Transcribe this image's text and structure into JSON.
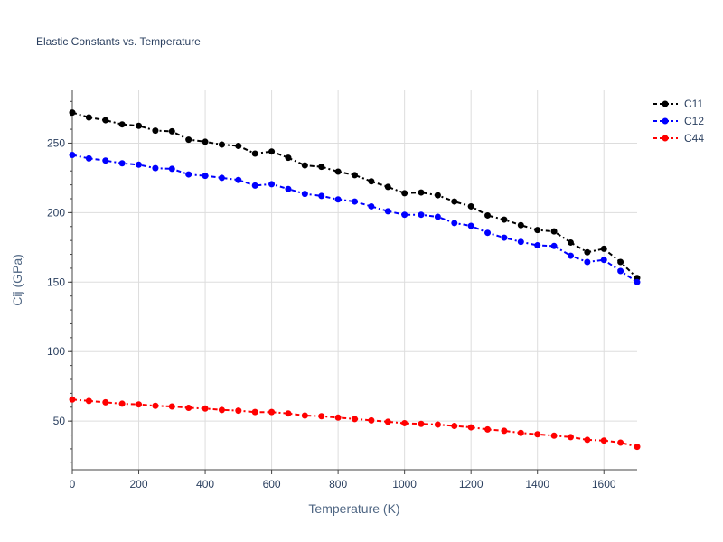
{
  "chart_data": {
    "type": "line",
    "title": "Elastic Constants vs. Temperature",
    "xlabel": "Temperature (K)",
    "ylabel": "Cij (GPa)",
    "xlim": [
      0,
      1700
    ],
    "ylim": [
      15,
      288
    ],
    "xticks": [
      0,
      200,
      400,
      600,
      800,
      1000,
      1200,
      1400,
      1600
    ],
    "yticks": [
      50,
      100,
      150,
      200,
      250
    ],
    "grid": true,
    "legend_position": "top-right",
    "x": [
      0,
      50,
      100,
      150,
      200,
      250,
      300,
      350,
      400,
      450,
      500,
      550,
      600,
      650,
      700,
      750,
      800,
      850,
      900,
      950,
      1000,
      1050,
      1100,
      1150,
      1200,
      1250,
      1300,
      1350,
      1400,
      1450,
      1500,
      1550,
      1600,
      1650,
      1700
    ],
    "series": [
      {
        "name": "C11",
        "color": "#000000",
        "values": [
          272,
          268.5,
          266.5,
          263.5,
          262.5,
          259,
          258.5,
          252.5,
          251,
          249,
          248,
          242.5,
          244,
          239.5,
          234,
          233,
          229.5,
          227,
          222.5,
          218.5,
          214,
          214.5,
          212.5,
          208,
          204.5,
          198,
          195,
          191,
          187.5,
          186.5,
          178.5,
          171.5,
          174,
          164.5,
          153
        ]
      },
      {
        "name": "C12",
        "color": "#0000ff",
        "values": [
          241.5,
          239,
          237.5,
          235.5,
          234.5,
          232,
          231.5,
          227.5,
          226.5,
          225,
          223.5,
          219.5,
          220.5,
          217,
          213.5,
          212,
          209.5,
          208,
          204.5,
          201,
          198.5,
          198.5,
          197,
          192.5,
          190.5,
          185.5,
          182,
          179,
          176.5,
          176,
          169,
          164.5,
          166,
          158,
          150
        ]
      },
      {
        "name": "C44",
        "color": "#ff0000",
        "values": [
          65.5,
          64.5,
          63.5,
          62.5,
          62,
          61,
          60.5,
          59.5,
          59,
          58,
          57.5,
          56.5,
          56.5,
          55.5,
          54,
          53.5,
          52.5,
          51.5,
          50.5,
          49.5,
          48.5,
          48,
          47.5,
          46.5,
          45.5,
          44,
          43,
          41.5,
          40.5,
          39.5,
          38.5,
          36.5,
          36,
          34.5,
          31.5
        ]
      }
    ]
  }
}
